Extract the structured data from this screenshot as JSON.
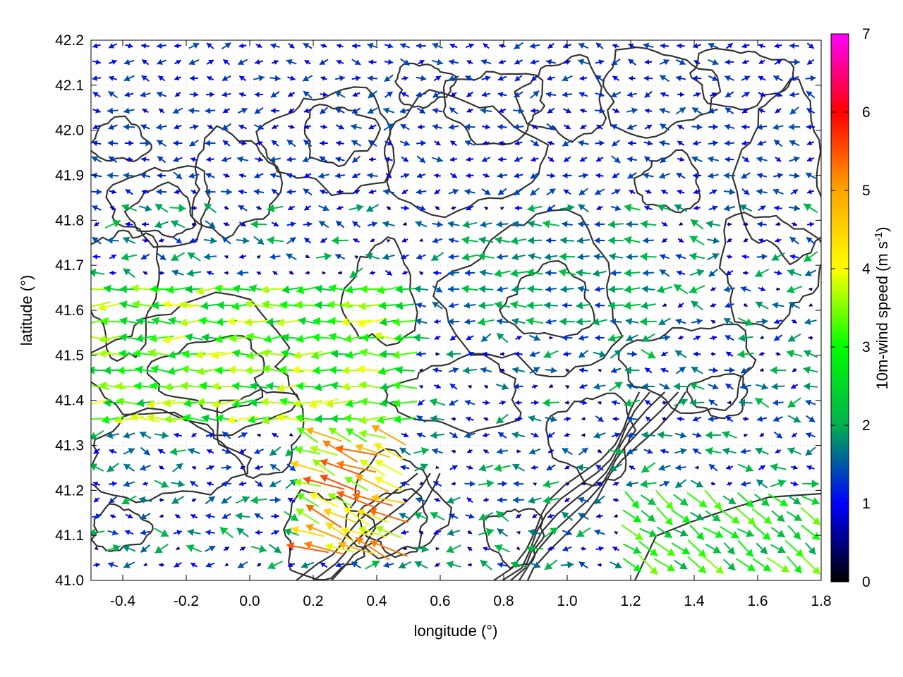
{
  "chart_data": {
    "type": "vector-field",
    "xlabel": "longitude (°)",
    "ylabel": "latitude (°)",
    "xlim": [
      -0.5,
      1.8
    ],
    "ylim": [
      41.0,
      42.2
    ],
    "xticks": [
      "-0.4",
      "-0.2",
      "0.0",
      "0.2",
      "0.4",
      "0.6",
      "0.8",
      "1.0",
      "1.2",
      "1.4",
      "1.6",
      "1.8"
    ],
    "yticks": [
      "41.0",
      "41.1",
      "41.2",
      "41.3",
      "41.4",
      "41.5",
      "41.6",
      "41.7",
      "41.8",
      "41.9",
      "42.0",
      "42.1",
      "42.2"
    ],
    "grid": true,
    "colorbar": {
      "label_main": "10m-wind speed (m s",
      "label_exp": "-1",
      "label_close": ")",
      "range": [
        0,
        7
      ],
      "ticks": [
        "0",
        "1",
        "2",
        "3",
        "4",
        "5",
        "6",
        "7"
      ],
      "colors": [
        "#000000",
        "#0000ff",
        "#00b050",
        "#00ff00",
        "#ffff00",
        "#ffa500",
        "#ff0000",
        "#ff00ff"
      ]
    },
    "wind_regions": [
      {
        "area": "west-central",
        "lon": [
          -0.5,
          0.5
        ],
        "lat": [
          41.35,
          41.65
        ],
        "speed": 3.2,
        "direction": "from east"
      },
      {
        "area": "south-central",
        "lon": [
          0.15,
          0.45
        ],
        "lat": [
          41.05,
          41.35
        ],
        "speed": 4.5,
        "direction": "from east-southeast"
      },
      {
        "area": "southeast",
        "lon": [
          1.2,
          1.8
        ],
        "lat": [
          41.0,
          41.2
        ],
        "speed": 2.8,
        "direction": "from northwest"
      },
      {
        "area": "central",
        "lon": [
          0.6,
          1.3
        ],
        "lat": [
          41.55,
          41.8
        ],
        "speed": 1.8,
        "direction": "from east"
      },
      {
        "area": "north",
        "lon": [
          -0.5,
          1.8
        ],
        "lat": [
          41.85,
          42.2
        ],
        "speed": 1.2,
        "direction": "variable"
      }
    ]
  }
}
